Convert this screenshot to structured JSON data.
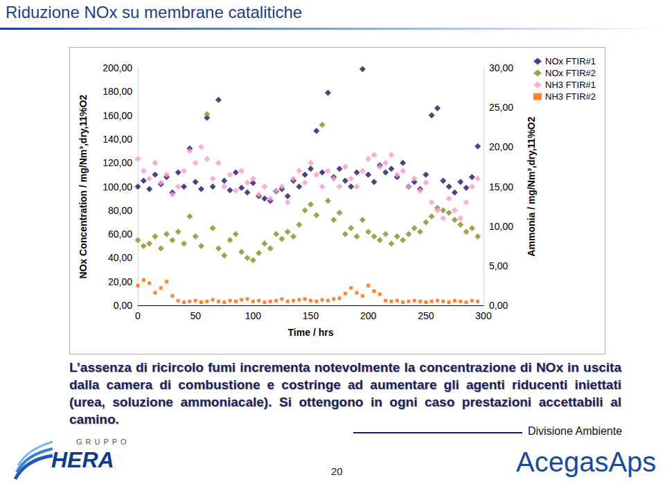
{
  "slide": {
    "title": "Riduzione NOx su membrane catalitiche",
    "text": "L’assenza di ricircolo fumi incrementa notevolmente la concentrazione di NOx in uscita dalla camera di combustione e costringe ad aumentare gli agenti riducenti iniettati (urea, soluzione ammoniacale). Si ottengono in ogni caso prestazioni accettabili al camino.",
    "division": "Divisione Ambiente",
    "group": "GRUPPO",
    "group_logo": "HERA",
    "company": "AcegasAps",
    "page": "20"
  },
  "chart_data": {
    "type": "scatter",
    "x_label": "Time / hrs",
    "y_label": "NOx Concentration / mg/Nm³,dry,11%O2",
    "y2_label": "Ammonia / mg/Nm³,dry,11%O2",
    "x": [
      0,
      5,
      10,
      15,
      20,
      25,
      30,
      35,
      40,
      45,
      50,
      55,
      60,
      65,
      70,
      75,
      80,
      85,
      90,
      95,
      100,
      105,
      110,
      115,
      120,
      125,
      130,
      135,
      140,
      145,
      150,
      155,
      160,
      165,
      170,
      175,
      180,
      185,
      190,
      195,
      200,
      205,
      210,
      215,
      220,
      225,
      230,
      235,
      240,
      245,
      250,
      255,
      260,
      265,
      270,
      275,
      280,
      285,
      290,
      295
    ],
    "xlim": [
      0,
      300
    ],
    "xticks": [
      0,
      50,
      100,
      150,
      200,
      250,
      300
    ],
    "ylim": [
      0,
      200
    ],
    "yticks": [
      {
        "value": 0,
        "label": "0,00"
      },
      {
        "value": 20,
        "label": "20,00"
      },
      {
        "value": 40,
        "label": "40,00"
      },
      {
        "value": 60,
        "label": "60,00"
      },
      {
        "value": 80,
        "label": "80,00"
      },
      {
        "value": 100,
        "label": "100,00"
      },
      {
        "value": 120,
        "label": "120,00"
      },
      {
        "value": 140,
        "label": "140,00"
      },
      {
        "value": 160,
        "label": "160,00"
      },
      {
        "value": 180,
        "label": "180,00"
      },
      {
        "value": 200,
        "label": "200,00"
      }
    ],
    "y2lim": [
      0,
      30
    ],
    "y2ticks": [
      {
        "value": 0,
        "label": "0,00"
      },
      {
        "value": 5,
        "label": "5,00"
      },
      {
        "value": 10,
        "label": "10,00"
      },
      {
        "value": 15,
        "label": "15,00"
      },
      {
        "value": 20,
        "label": "20,00"
      },
      {
        "value": 25,
        "label": "25,00"
      },
      {
        "value": 30,
        "label": "30,00"
      }
    ],
    "grid": false,
    "legend": "upper right",
    "series": [
      {
        "name": "NOx FTIR#1",
        "color": "#1b1464",
        "marker": "diamond",
        "values": [
          100,
          105,
          98,
          110,
          102,
          108,
          95,
          112,
          100,
          132,
          104,
          98,
          158,
          100,
          173,
          105,
          97,
          112,
          99,
          95,
          103,
          92,
          90,
          88,
          96,
          98,
          92,
          105,
          100,
          110,
          115,
          147,
          112,
          179,
          108,
          115,
          105,
          100,
          112,
          199,
          110,
          104,
          118,
          112,
          115,
          108,
          120,
          100,
          104,
          98,
          110,
          160,
          166,
          105,
          100,
          95,
          104,
          99,
          108,
          134
        ]
      },
      {
        "name": "NOx FTIR#2",
        "color": "#8b8b1e",
        "marker": "diamond",
        "values": [
          55,
          50,
          52,
          58,
          48,
          60,
          55,
          62,
          52,
          75,
          58,
          50,
          161,
          65,
          48,
          42,
          55,
          60,
          45,
          40,
          38,
          44,
          52,
          48,
          60,
          56,
          62,
          58,
          68,
          80,
          85,
          76,
          152,
          88,
          72,
          78,
          60,
          65,
          58,
          72,
          62,
          58,
          55,
          60,
          52,
          58,
          55,
          60,
          65,
          62,
          70,
          75,
          82,
          80,
          78,
          72,
          68,
          62,
          65,
          58
        ]
      },
      {
        "name": "NH3 FTIR#1",
        "color": "#ff99cc",
        "marker": "diamond",
        "axis": "y2",
        "values": [
          18.5,
          17,
          16,
          18,
          15.5,
          16.5,
          14,
          15,
          17,
          19.5,
          18,
          20,
          18.5,
          16,
          18,
          15,
          16.5,
          14.5,
          17,
          15.5,
          16,
          14,
          15,
          13.5,
          14.5,
          15,
          13,
          16,
          17,
          15.5,
          18,
          16.5,
          15,
          17,
          16,
          15,
          17.5,
          16,
          15,
          17,
          18.5,
          19,
          17.5,
          18,
          19,
          16.5,
          17,
          15,
          16,
          14.5,
          15.5,
          13,
          12,
          11,
          13.5,
          12,
          11,
          13,
          15,
          16
        ]
      },
      {
        "name": "NH3 FTIR#2",
        "color": "#ff6600",
        "marker": "square",
        "axis": "y2",
        "values": [
          2.5,
          3.2,
          2.8,
          1.6,
          2.2,
          3.0,
          1.2,
          0.6,
          0.4,
          0.5,
          0.6,
          0.4,
          0.5,
          0.7,
          0.5,
          0.4,
          0.6,
          0.5,
          0.7,
          0.8,
          0.5,
          0.6,
          0.4,
          0.5,
          0.6,
          0.8,
          0.5,
          0.6,
          0.7,
          0.8,
          0.6,
          0.5,
          0.7,
          0.6,
          0.8,
          0.9,
          1.5,
          2.2,
          1.6,
          1.2,
          2.5,
          1.8,
          1.4,
          0.6,
          0.5,
          0.6,
          0.4,
          0.5,
          0.6,
          0.5,
          0.4,
          0.5,
          0.6,
          0.5,
          0.4,
          0.6,
          0.5,
          0.4,
          0.6,
          0.5
        ]
      }
    ]
  }
}
